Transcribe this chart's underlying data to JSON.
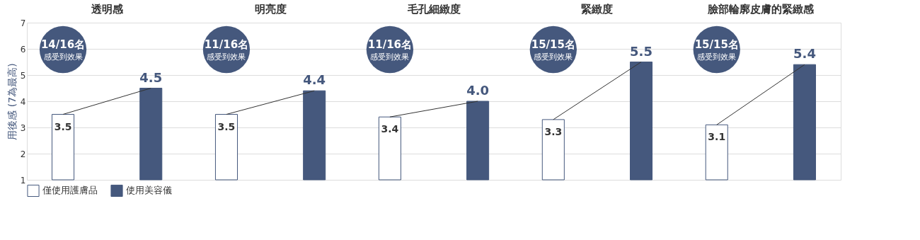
{
  "chart_data": {
    "type": "bar",
    "categories": [
      "透明感",
      "明亮度",
      "毛孔細緻度",
      "緊緻度",
      "臉部輪廓皮膚的緊緻感"
    ],
    "ylabel": "用後感 (7為最高)",
    "ylim": [
      1,
      7
    ],
    "yticks": [
      1,
      2,
      3,
      4,
      5,
      6,
      7
    ],
    "grid": "y",
    "legend": "bottom left",
    "data_labels": true,
    "series": [
      {
        "name": "僅使用護膚品",
        "color": "#ffffff",
        "values": [
          3.5,
          3.5,
          3.4,
          3.3,
          3.1
        ]
      },
      {
        "name": "使用美容儀",
        "color": "#45587d",
        "values": [
          4.5,
          4.4,
          4.0,
          5.5,
          5.4
        ],
        "value_labels": [
          "4.5",
          "4.4",
          "4.0",
          "5.5",
          "5.4"
        ]
      }
    ],
    "annotations": [
      "14/16名",
      "感受到效果",
      "11/16名",
      "感受到效果",
      "11/16名",
      "感受到效果",
      "15/15名",
      "感受到效果",
      "15/15名",
      "感受到效果"
    ]
  }
}
